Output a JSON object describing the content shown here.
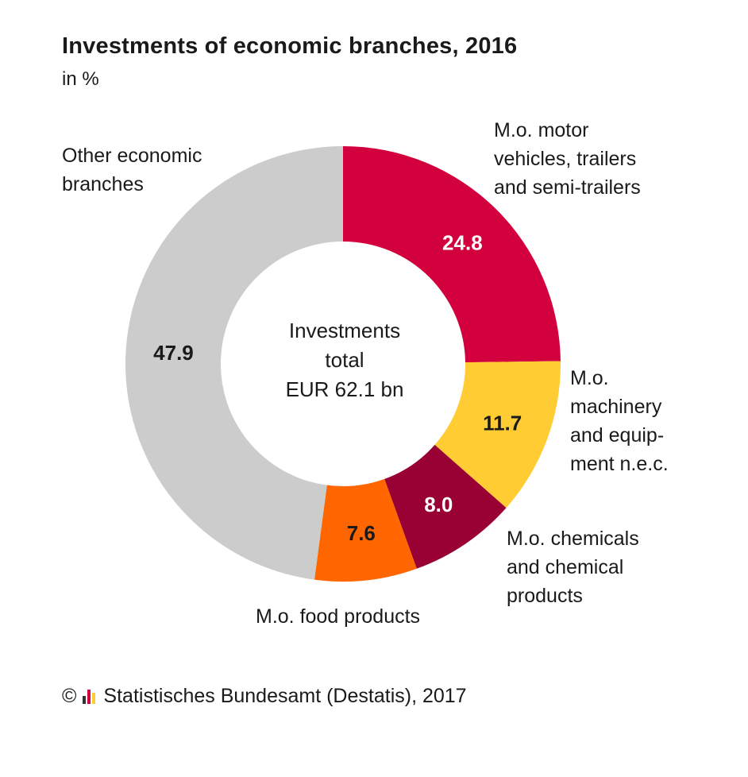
{
  "header": {
    "title": "Investments of economic branches, 2016",
    "subtitle": "in %"
  },
  "center_label": {
    "line1": "Investments",
    "line2": "total",
    "line3": "EUR 62.1 bn"
  },
  "footer": {
    "copyright_symbol": "©",
    "source": "Statistisches Bundesamt (Destatis), 2017"
  },
  "chart_data": {
    "type": "pie",
    "variant": "donut",
    "title": "Investments of economic branches, 2016",
    "subtitle": "in %",
    "slices": [
      {
        "label": "M.o. motor vehicles, trailers and semi-trailers",
        "value": 24.8,
        "value_label": "24.8",
        "color": "#d2003c",
        "label_color": "#ffffff"
      },
      {
        "label": "M.o. machinery and equip-ment n.e.c.",
        "value": 11.7,
        "value_label": "11.7",
        "color": "#ffcc33",
        "label_color": "#1a1a1a"
      },
      {
        "label": "M.o. chemicals and chemical products",
        "value": 8.0,
        "value_label": "8.0",
        "color": "#990033",
        "label_color": "#ffffff"
      },
      {
        "label": "M.o. food products",
        "value": 7.6,
        "value_label": "7.6",
        "color": "#ff6600",
        "label_color": "#1a1a1a"
      },
      {
        "label": "Other economic branches",
        "value": 47.9,
        "value_label": "47.9",
        "color": "#cccccc",
        "label_color": "#1a1a1a"
      }
    ],
    "category_label_lines": [
      [
        "M.o. motor",
        "vehicles, trailers",
        "and semi-trailers"
      ],
      [
        "M.o.",
        "machinery",
        "and equip-",
        "ment n.e.c."
      ],
      [
        "M.o. chemicals",
        "and chemical",
        "products"
      ],
      [
        "M.o. food products"
      ],
      [
        "Other economic",
        "branches"
      ]
    ],
    "start": "12 o'clock",
    "direction": "clockwise",
    "legend": "none"
  }
}
